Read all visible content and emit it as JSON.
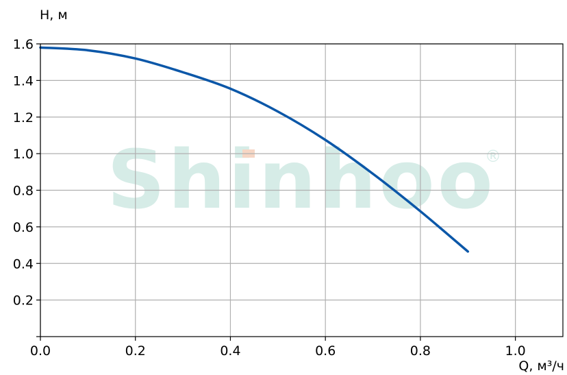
{
  "chart_data": {
    "type": "line",
    "xlabel": "Q, м³/ч",
    "ylabel": "H, м",
    "xlim": [
      0.0,
      1.1
    ],
    "ylim": [
      0.0,
      1.6
    ],
    "xticks": [
      "0.0",
      "0.2",
      "0.4",
      "0.6",
      "0.8",
      "1.0"
    ],
    "yticks": [
      "0.2",
      "0.4",
      "0.6",
      "0.8",
      "1.0",
      "1.2",
      "1.4",
      "1.6"
    ],
    "grid": true,
    "series": [
      {
        "color": "#0b57a8",
        "x": [
          0.0,
          0.1,
          0.2,
          0.3,
          0.4,
          0.5,
          0.6,
          0.7,
          0.8,
          0.9
        ],
        "y": [
          1.58,
          1.565,
          1.52,
          1.445,
          1.355,
          1.23,
          1.075,
          0.89,
          0.685,
          0.465
        ]
      }
    ]
  },
  "watermark": {
    "text": "Shinhoo",
    "registered_mark": "®",
    "color": "#d6ece7",
    "accent_color": "#f6d6c4"
  }
}
